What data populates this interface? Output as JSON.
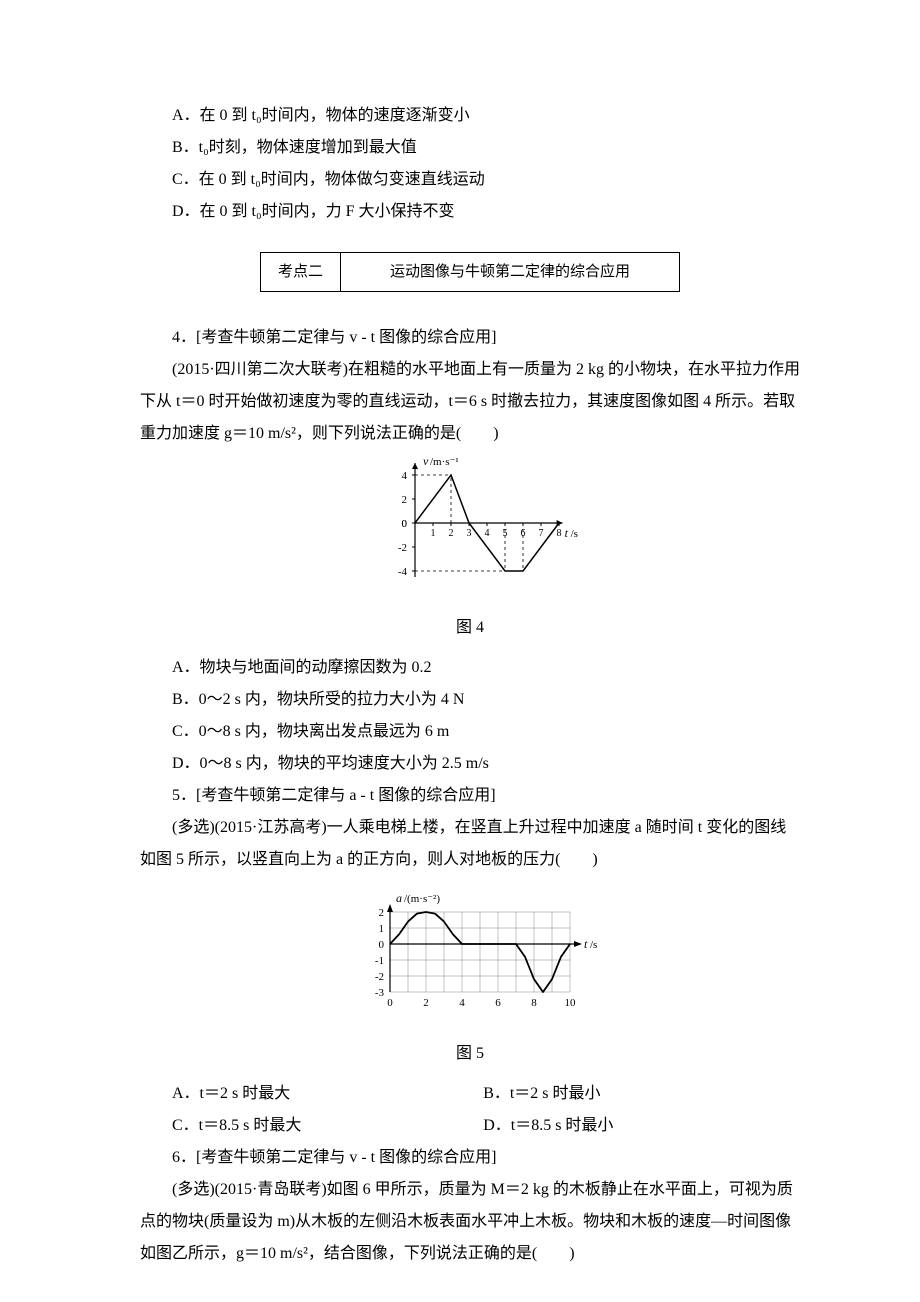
{
  "q3": {
    "options": {
      "A": "A．在 0 到 t₀时间内，物体的速度逐渐变小",
      "B": "B．t₀时刻，物体速度增加到最大值",
      "C": "C．在 0 到 t₀时间内，物体做匀变速直线运动",
      "D": "D．在 0 到 t₀时间内，力 F 大小保持不变"
    }
  },
  "section": {
    "label": "考点二",
    "title": "运动图像与牛顿第二定律的综合应用"
  },
  "q4": {
    "heading": "4．[考查牛顿第二定律与 v - t 图像的综合应用]",
    "body": "(2015·四川第二次大联考)在粗糙的水平地面上有一质量为 2 kg 的小物块，在水平拉力作用下从 t＝0 时开始做初速度为零的直线运动，t＝6 s 时撤去拉力，其速度图像如图 4 所示。若取重力加速度 g＝10 m/s²，则下列说法正确的是(　　)",
    "caption": "图 4",
    "options": {
      "A": "A．物块与地面间的动摩擦因数为 0.2",
      "B": "B．0～2 s 内，物块所受的拉力大小为 4 N",
      "C": "C．0～8 s 内，物块离出发点最远为 6 m",
      "D": "D．0～8 s 内，物块的平均速度大小为 2.5 m/s"
    },
    "chart": {
      "type": "line",
      "xlabel": "t/s",
      "ylabel": "v/m·s⁻¹",
      "xlim": [
        0,
        8.2
      ],
      "ylim": [
        -4.5,
        5
      ],
      "xticks": [
        1,
        2,
        3,
        4,
        5,
        6,
        7,
        8
      ],
      "yticks": [
        -4,
        -2,
        0,
        2,
        4
      ],
      "points": [
        [
          0,
          0
        ],
        [
          2,
          4
        ],
        [
          3,
          0
        ],
        [
          5,
          -4
        ],
        [
          6,
          -4
        ],
        [
          8,
          0
        ]
      ],
      "line_color": "#000000",
      "dash_color": "#000000",
      "background": "#ffffff"
    }
  },
  "q5": {
    "heading": "5．[考查牛顿第二定律与 a - t 图像的综合应用]",
    "body": "(多选)(2015·江苏高考)一人乘电梯上楼，在竖直上升过程中加速度 a 随时间 t 变化的图线如图 5 所示，以竖直向上为 a 的正方向，则人对地板的压力(　　)",
    "caption": "图 5",
    "options": {
      "A": "A．t＝2 s 时最大",
      "B": "B．t＝2 s 时最小",
      "C": "C．t＝8.5 s 时最大",
      "D": "D．t＝8.5 s 时最小"
    },
    "chart": {
      "type": "line-on-grid",
      "xlabel": "t/s",
      "ylabel": "a/(m·s⁻²)",
      "xlim": [
        0,
        10
      ],
      "ylim": [
        -3,
        2
      ],
      "xticks": [
        0,
        2,
        4,
        6,
        8,
        10
      ],
      "yticks": [
        -3,
        -2,
        -1,
        0,
        1,
        2
      ],
      "grid_color": "#888888",
      "line_color": "#000000",
      "curve": [
        [
          0,
          0
        ],
        [
          0.5,
          0.6
        ],
        [
          1,
          1.4
        ],
        [
          1.5,
          1.9
        ],
        [
          2,
          2
        ],
        [
          2.5,
          1.9
        ],
        [
          3,
          1.4
        ],
        [
          3.5,
          0.6
        ],
        [
          4,
          0
        ],
        [
          7,
          0
        ],
        [
          7.5,
          -0.8
        ],
        [
          8,
          -2.2
        ],
        [
          8.5,
          -3
        ],
        [
          9,
          -2.2
        ],
        [
          9.5,
          -0.8
        ],
        [
          10,
          0
        ]
      ]
    }
  },
  "q6": {
    "heading": "6．[考查牛顿第二定律与 v - t 图像的综合应用]",
    "body": "(多选)(2015·青岛联考)如图 6 甲所示，质量为 M＝2 kg 的木板静止在水平面上，可视为质点的物块(质量设为 m)从木板的左侧沿木板表面水平冲上木板。物块和木板的速度—时间图像如图乙所示，g＝10 m/s²，结合图像，下列说法正确的是(　　)"
  }
}
